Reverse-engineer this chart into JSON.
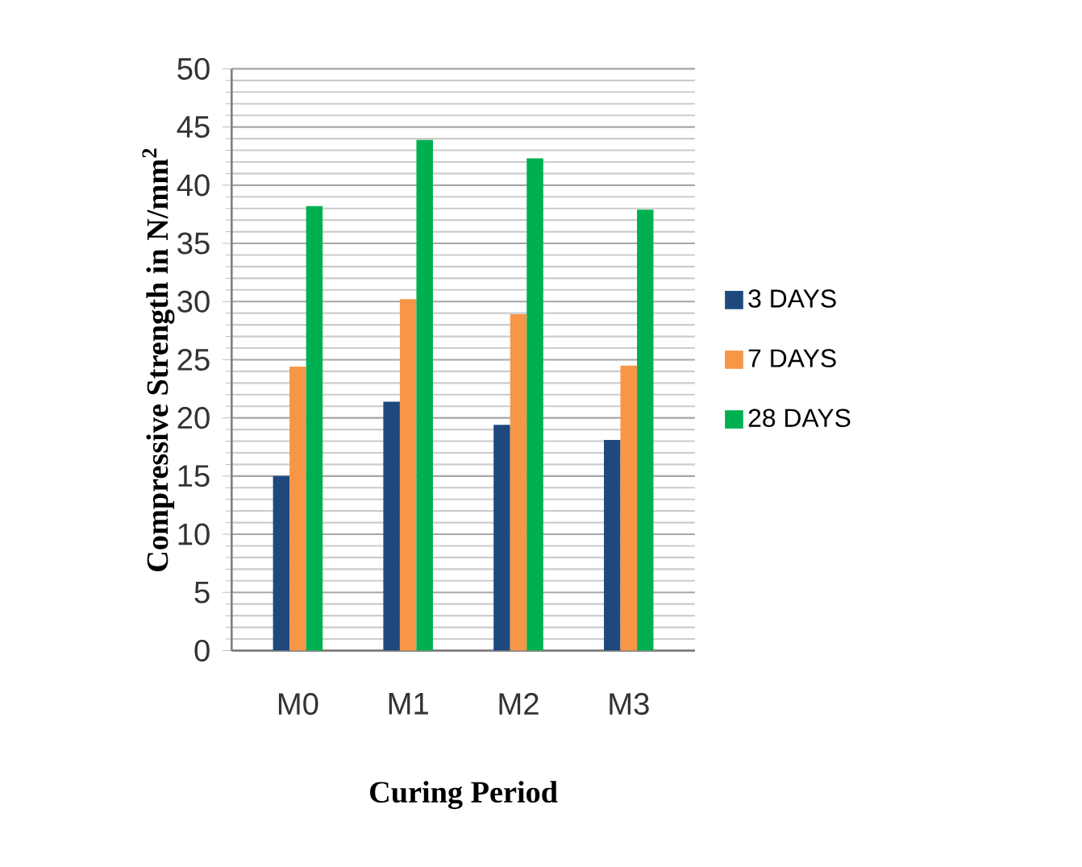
{
  "chart_data": {
    "type": "bar",
    "xlabel": "Curing Period",
    "ylabel": "Compressive  Strength in N/mm$^{2}$",
    "categories": [
      "M0",
      "M1",
      "M2",
      "M3"
    ],
    "series": [
      {
        "name": "3 DAYS",
        "color": "#1f497d",
        "values": [
          15.0,
          21.4,
          19.4,
          18.1
        ]
      },
      {
        "name": "7 DAYS",
        "color": "#f79646",
        "values": [
          24.4,
          30.2,
          28.9,
          24.5
        ]
      },
      {
        "name": "28 DAYS",
        "color": "#00b050",
        "values": [
          38.2,
          43.9,
          42.3,
          37.9
        ]
      }
    ],
    "ylim": [
      0,
      50
    ],
    "yticks": [
      0,
      5,
      10,
      15,
      20,
      25,
      30,
      35,
      40,
      45,
      50
    ],
    "grid": "y",
    "legend": "right"
  }
}
